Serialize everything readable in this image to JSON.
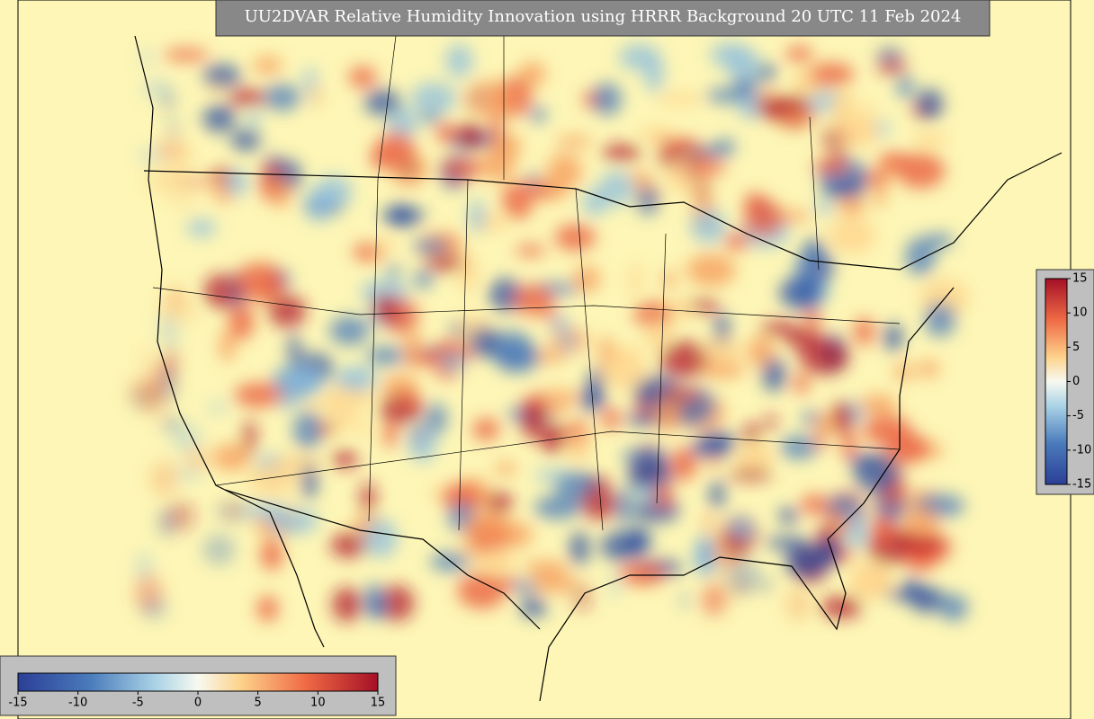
{
  "title": "UU2DVAR Relative Humidity Innovation using HRRR Background 20 UTC 11 Feb 2024",
  "colorbars": [
    {
      "orientation": "vertical",
      "lim": [
        -15,
        15
      ],
      "ticks": [
        15,
        10,
        5,
        0,
        -5,
        -10,
        -15
      ]
    },
    {
      "orientation": "horizontal",
      "lim": [
        -15,
        15
      ],
      "ticks": [
        -15,
        -10,
        -5,
        0,
        5,
        10,
        15
      ]
    }
  ]
}
